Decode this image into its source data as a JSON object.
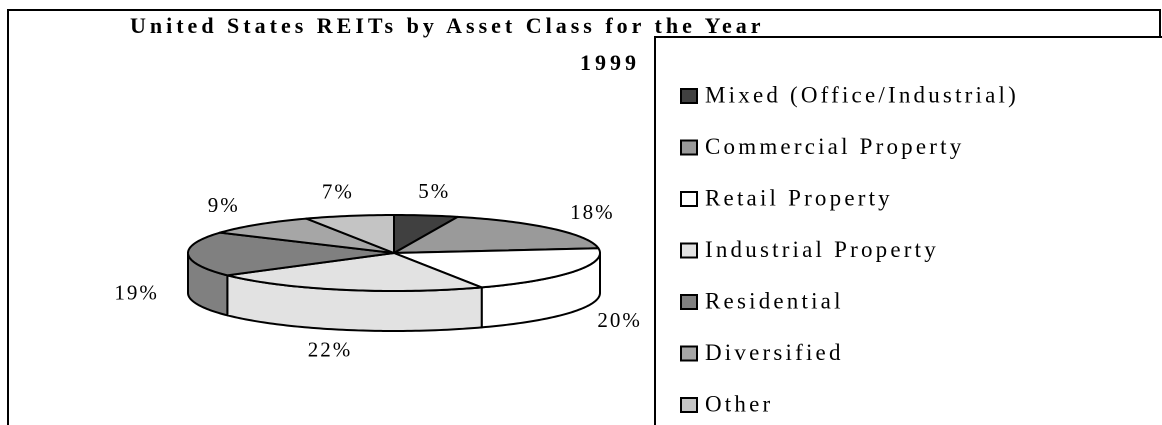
{
  "chart_data": {
    "type": "pie3d",
    "title": "United States REITs by Asset Class for the Year",
    "subtitle": "1999",
    "categories": [
      "Mixed (Office/Industrial)",
      "Commercial Property",
      "Retail Property",
      "Industrial Property",
      "Residential",
      "Diversified",
      "Other"
    ],
    "values": [
      5,
      18,
      20,
      22,
      19,
      9,
      7
    ],
    "value_labels": [
      "5%",
      "18%",
      "20%",
      "22%",
      "19%",
      "9%",
      "7%"
    ],
    "colors": [
      "#404040",
      "#9a9a9a",
      "#ffffff",
      "#e2e2e2",
      "#808080",
      "#a6a6a6",
      "#c4c4c4"
    ]
  }
}
